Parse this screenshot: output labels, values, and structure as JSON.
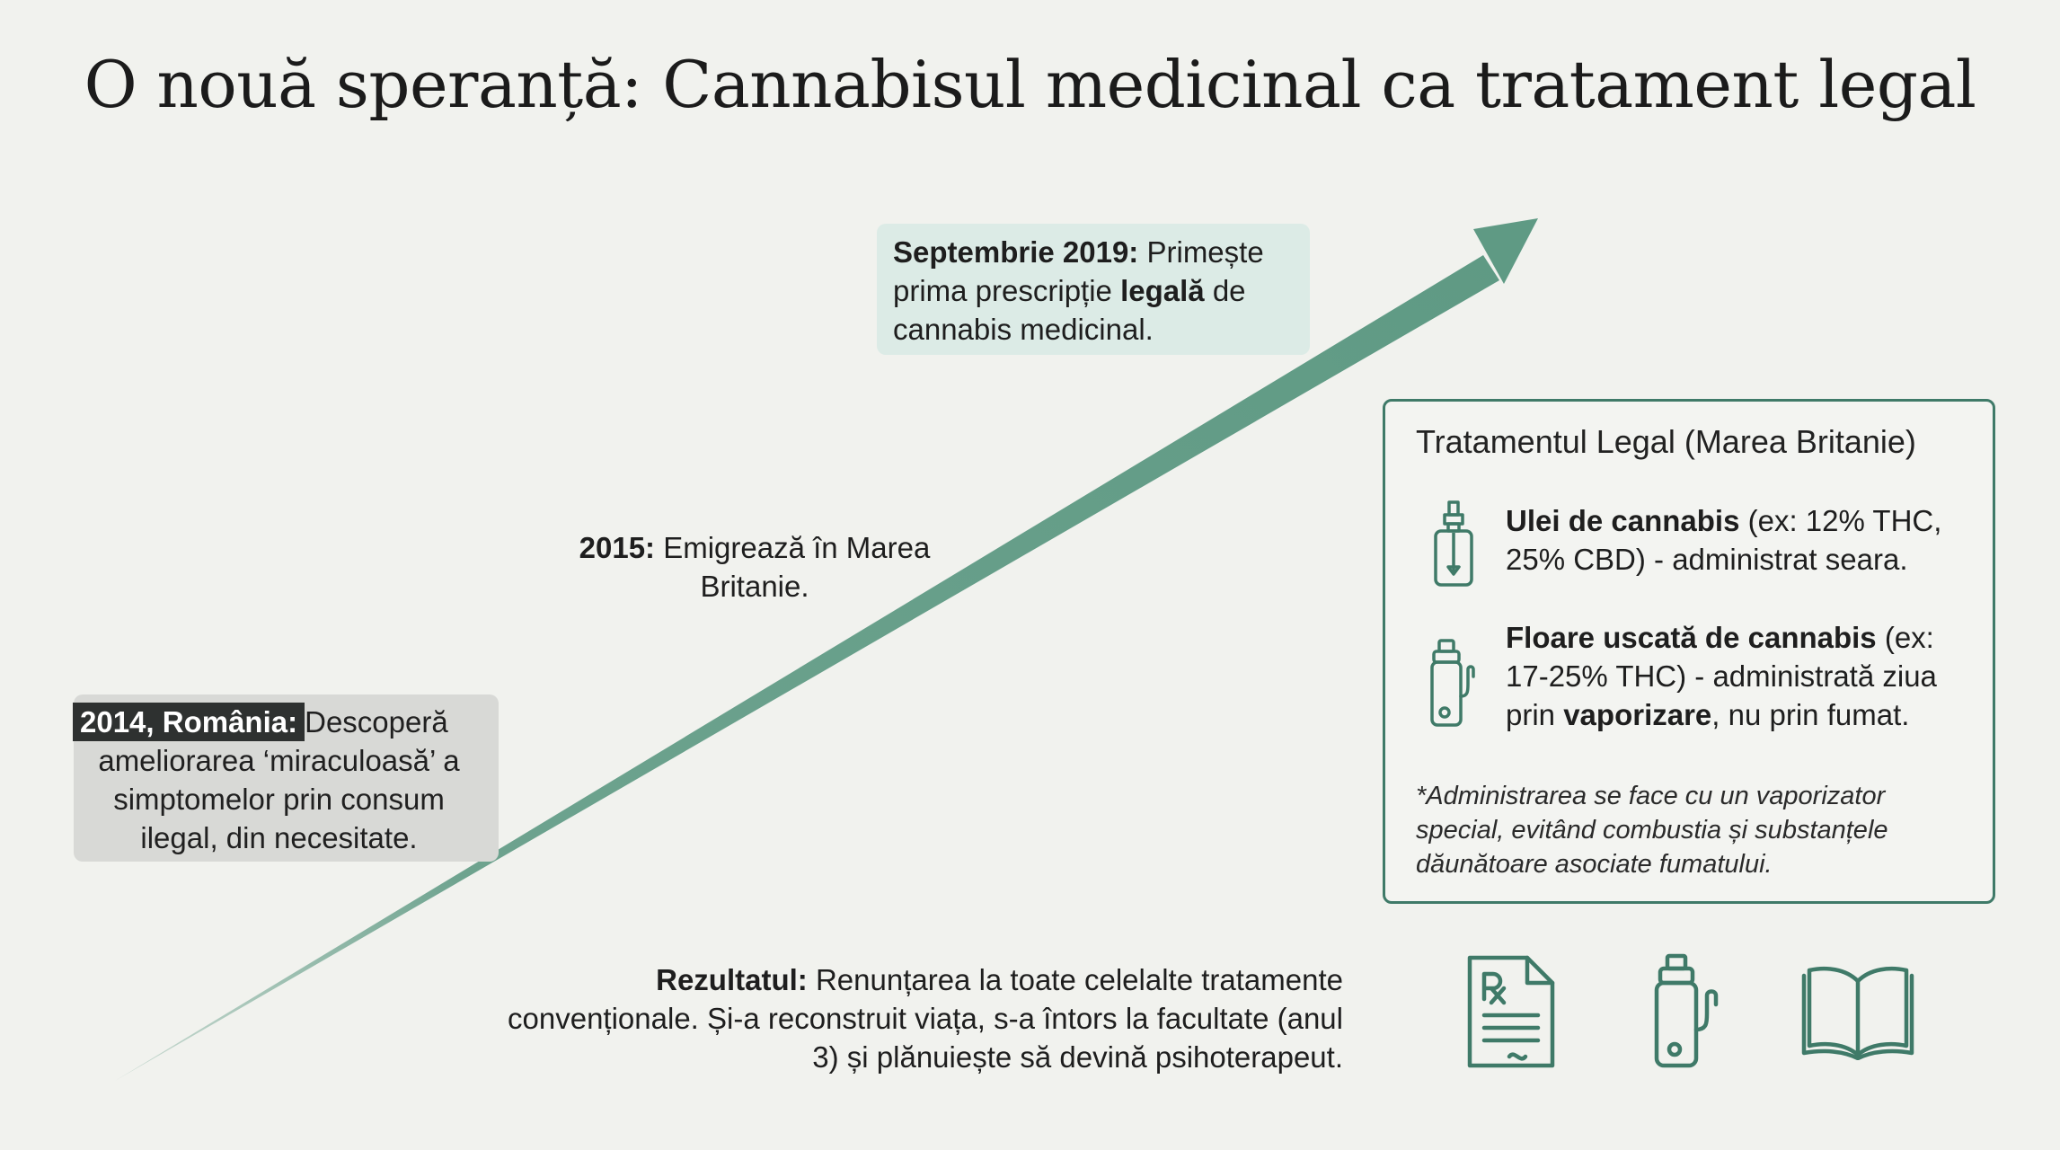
{
  "title": "O nouă speranță: Cannabisul medicinal ca tratament legal",
  "colors": {
    "accent": "#5f9a84",
    "box_border": "#3f7a68",
    "icon": "#3f7a68",
    "box_2014_bg": "#d8d9d6",
    "box_2019_bg": "#dcebe6"
  },
  "timeline": {
    "event_2014": {
      "tag": "2014, România:",
      "text_line1": "Descoperă",
      "text_rest": "ameliorarea ‘miraculoasă’ a simptomelor prin consum ilegal, din necesitate."
    },
    "event_2015": {
      "bold": "2015:",
      "text": "Emigrează în Marea Britanie."
    },
    "event_2019": {
      "bold": "Septembrie 2019:",
      "text_a": "Primește prima prescripție",
      "bold2": "legală",
      "text_b": "de cannabis medicinal."
    }
  },
  "legal_box": {
    "title": "Tratamentul Legal (Marea Britanie)",
    "item1": {
      "icon": "dropper-bottle-icon",
      "bold": "Ulei de cannabis",
      "text": "(ex: 12% THC, 25% CBD) - administrat seara."
    },
    "item2": {
      "icon": "vaporizer-icon",
      "bold": "Floare uscată de cannabis",
      "text_a": "(ex: 17-25% THC) - administrată ziua prin",
      "bold2": "vaporizare",
      "text_b": ", nu prin fumat."
    },
    "footnote": "*Administrarea se face cu un vaporizator special, evitând combustia și substanțele dăunătoare asociate fumatului."
  },
  "result": {
    "bold": "Rezultatul:",
    "text": "Renunțarea la toate celelalte tratamente convenționale. Și-a reconstruit viața, s-a întors la facultate (anul 3) și plănuiește să devină psihoterapeut."
  },
  "bottom_icons": [
    "prescription-icon",
    "vaporizer-icon",
    "book-icon"
  ]
}
